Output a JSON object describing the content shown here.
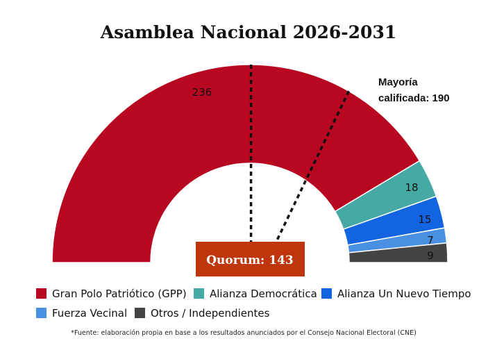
{
  "chart_data": {
    "type": "pie",
    "subtype": "parliament-semicircle",
    "title": "Asamblea Nacional 2026-2031",
    "total": 285,
    "series": [
      {
        "name": "Gran Polo Patriótico (GPP)",
        "value": 236,
        "label": "236",
        "color": "#b80720"
      },
      {
        "name": "Alianza Democrática",
        "value": 18,
        "label": "18",
        "color": "#47a9a5"
      },
      {
        "name": "Alianza Un Nuevo Tiempo",
        "value": 15,
        "label": "15",
        "color": "#1364e0"
      },
      {
        "name": "Fuerza Vecinal",
        "value": 7,
        "label": "7",
        "color": "#4a90e2"
      },
      {
        "name": "Otros / Independientes",
        "value": 9,
        "label": "9",
        "color": "#444444"
      }
    ],
    "thresholds": [
      {
        "label": "Quorum: 143",
        "value": 143,
        "style": "dotted",
        "color": "#111111",
        "box_color": "#bf360c"
      },
      {
        "label_lines": [
          "Mayoría",
          "calificada: 190"
        ],
        "value": 190,
        "style": "dotted",
        "color": "#111111"
      }
    ],
    "legend": {
      "placement": "bottom"
    },
    "source": "*Fuente: elaboración propia en base a los resultados anunciados por el Consejo Nacional Electoral (CNE)"
  }
}
